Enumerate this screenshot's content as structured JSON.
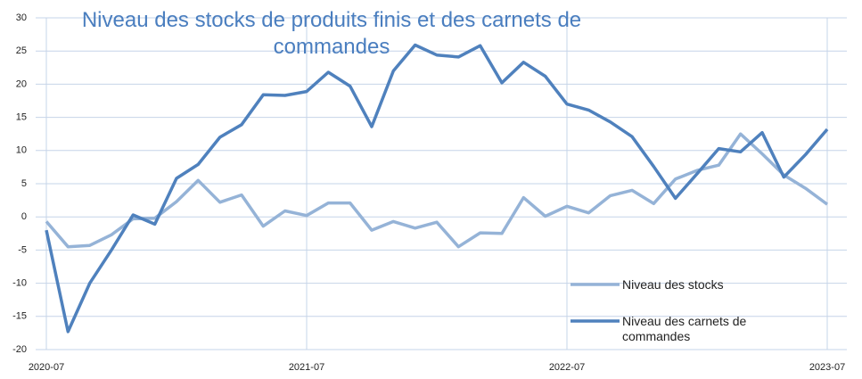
{
  "chart_data": {
    "type": "line",
    "title": "Niveau des stocks de produits finis et des carnets de commandes",
    "x": [
      "2020-07",
      "2020-08",
      "2020-09",
      "2020-10",
      "2020-11",
      "2020-12",
      "2021-01",
      "2021-02",
      "2021-03",
      "2021-04",
      "2021-05",
      "2021-06",
      "2021-07",
      "2021-08",
      "2021-09",
      "2021-10",
      "2021-11",
      "2021-12",
      "2022-01",
      "2022-02",
      "2022-03",
      "2022-04",
      "2022-05",
      "2022-06",
      "2022-07",
      "2022-08",
      "2022-09",
      "2022-10",
      "2022-11",
      "2022-12",
      "2023-01",
      "2023-02",
      "2023-03",
      "2023-04",
      "2023-05",
      "2023-06",
      "2023-07"
    ],
    "xticks": [
      "2020-07",
      "2021-07",
      "2022-07",
      "2023-07"
    ],
    "series": [
      {
        "name": "Niveau des stocks",
        "color": "#95b3d7",
        "values": [
          -0.7,
          -4.5,
          -4.3,
          -2.7,
          -0.3,
          -0.2,
          2.3,
          5.5,
          2.2,
          3.3,
          -1.4,
          0.9,
          0.2,
          2.1,
          2.1,
          -2.0,
          -0.7,
          -1.7,
          -0.8,
          -4.5,
          -2.4,
          -2.5,
          2.9,
          0.1,
          1.6,
          0.6,
          3.2,
          4.0,
          2.0,
          5.7,
          7.0,
          7.8,
          12.5,
          9.5,
          6.3,
          4.3,
          1.9
        ]
      },
      {
        "name": "Niveau des carnets de commandes",
        "color": "#4f81bd",
        "values": [
          -2.0,
          -17.3,
          -10.0,
          -5.0,
          0.3,
          -1.1,
          5.8,
          7.9,
          12.0,
          13.9,
          18.4,
          18.3,
          18.9,
          21.8,
          19.7,
          13.6,
          22.0,
          25.9,
          24.4,
          24.1,
          25.8,
          20.2,
          23.3,
          21.2,
          17.0,
          16.1,
          14.3,
          12.1,
          7.6,
          2.8,
          6.5,
          10.3,
          9.8,
          12.7,
          6.0,
          9.4,
          13.2
        ]
      }
    ],
    "ylim": [
      -20,
      30
    ],
    "yticks": [
      -20,
      -15,
      -10,
      -5,
      0,
      5,
      10,
      15,
      20,
      25,
      30
    ],
    "grid": true
  }
}
